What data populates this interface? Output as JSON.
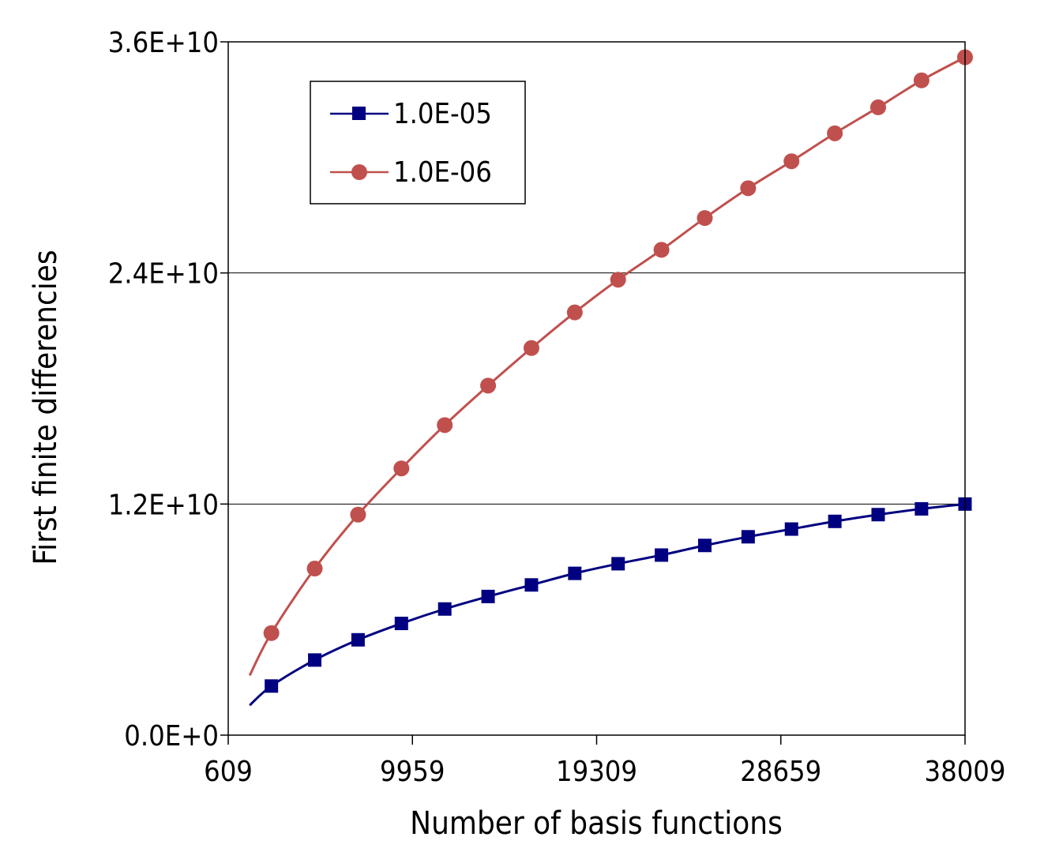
{
  "chart_data": {
    "type": "line",
    "xlabel": "Number of basis functions",
    "ylabel": "First finite differencies",
    "xlim": [
      609,
      38009
    ],
    "ylim": [
      0,
      36000000000
    ],
    "x_ticks": [
      609,
      9959,
      19309,
      28659,
      38009
    ],
    "x_tick_labels": [
      "609",
      "9959",
      "19309",
      "28659",
      "38009"
    ],
    "y_ticks": [
      0,
      12000000000,
      24000000000,
      36000000000
    ],
    "y_tick_labels": [
      "0.0E+0",
      "1.2E+10",
      "2.4E+10",
      "3.6E+10"
    ],
    "gridlines": "horizontal",
    "legend_position": "top-left",
    "x": [
      1700,
      2800,
      5000,
      7200,
      9400,
      11600,
      13800,
      16000,
      18200,
      20400,
      22600,
      24800,
      27000,
      29200,
      31400,
      33600,
      35800,
      38009
    ],
    "series": [
      {
        "name": "1.0E-05",
        "color": "#000080",
        "marker": "square",
        "marker_start_index": 1,
        "values": [
          1550000000,
          2550000000,
          3900000000,
          4950000000,
          5800000000,
          6550000000,
          7200000000,
          7800000000,
          8400000000,
          8900000000,
          9350000000,
          9850000000,
          10300000000,
          10700000000,
          11100000000,
          11450000000,
          11750000000,
          12000000000
        ]
      },
      {
        "name": "1.0E-06",
        "color": "#C0504D",
        "marker": "circle",
        "marker_start_index": 1,
        "values": [
          3100000000,
          5300000000,
          8650000000,
          11450000000,
          13850000000,
          16100000000,
          18150000000,
          20100000000,
          21950000000,
          23650000000,
          25200000000,
          26850000000,
          28400000000,
          29800000000,
          31250000000,
          32600000000,
          34000000000,
          35200000000
        ]
      }
    ]
  }
}
